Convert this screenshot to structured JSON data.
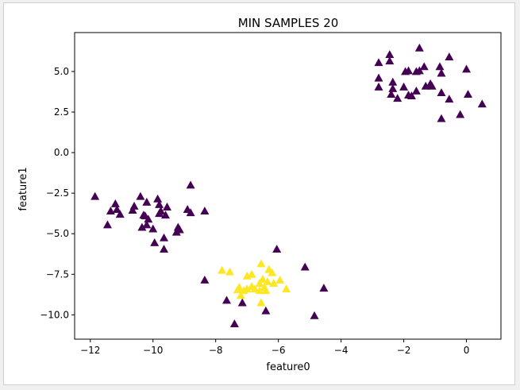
{
  "chart_data": {
    "type": "scatter",
    "title": "MIN SAMPLES 20",
    "xlabel": "feature0",
    "ylabel": "feature1",
    "xlim": [
      -12.5,
      1.1
    ],
    "ylim": [
      -11.5,
      7.4
    ],
    "xticks": [
      -12,
      -10,
      -8,
      -6,
      -4,
      -2,
      0
    ],
    "yticks": [
      -10.0,
      -7.5,
      -5.0,
      -2.5,
      0.0,
      2.5,
      5.0
    ],
    "xtick_labels": [
      "−12",
      "−10",
      "−8",
      "−6",
      "−4",
      "−2",
      "0"
    ],
    "ytick_labels": [
      "−10.0",
      "−7.5",
      "−5.0",
      "−2.5",
      "0.0",
      "2.5",
      "5.0"
    ],
    "grid": false,
    "marker": "triangle",
    "series": [
      {
        "color": "#440154",
        "points": [
          [
            -2.8,
            5.55
          ],
          [
            -2.45,
            6.05
          ],
          [
            -2.45,
            5.65
          ],
          [
            -1.5,
            6.45
          ],
          [
            -0.55,
            5.9
          ],
          [
            -2.8,
            4.6
          ],
          [
            -2.35,
            4.35
          ],
          [
            -1.95,
            5.0
          ],
          [
            -1.85,
            5.05
          ],
          [
            -1.6,
            5.0
          ],
          [
            -1.5,
            5.05
          ],
          [
            -1.35,
            5.3
          ],
          [
            -0.85,
            5.3
          ],
          [
            -0.8,
            4.9
          ],
          [
            0.0,
            5.15
          ],
          [
            -2.8,
            4.05
          ],
          [
            -2.35,
            3.95
          ],
          [
            -2.4,
            3.6
          ],
          [
            -2.2,
            3.35
          ],
          [
            -2.0,
            4.05
          ],
          [
            -1.85,
            3.55
          ],
          [
            -1.75,
            3.5
          ],
          [
            -1.6,
            3.8
          ],
          [
            -1.3,
            4.1
          ],
          [
            -1.15,
            4.25
          ],
          [
            -1.1,
            4.1
          ],
          [
            -0.8,
            3.7
          ],
          [
            -0.55,
            3.3
          ],
          [
            0.05,
            3.6
          ],
          [
            0.5,
            3.0
          ],
          [
            -0.8,
            2.1
          ],
          [
            -0.2,
            2.35
          ],
          [
            -8.8,
            -2.0
          ],
          [
            -11.85,
            -2.7
          ],
          [
            -10.4,
            -2.7
          ],
          [
            -9.85,
            -2.85
          ],
          [
            -10.2,
            -3.05
          ],
          [
            -11.2,
            -3.15
          ],
          [
            -10.6,
            -3.3
          ],
          [
            -9.8,
            -3.2
          ],
          [
            -9.75,
            -3.6
          ],
          [
            -9.55,
            -3.35
          ],
          [
            -11.35,
            -3.6
          ],
          [
            -11.15,
            -3.5
          ],
          [
            -11.05,
            -3.8
          ],
          [
            -10.65,
            -3.55
          ],
          [
            -10.3,
            -3.85
          ],
          [
            -10.25,
            -3.9
          ],
          [
            -10.15,
            -4.1
          ],
          [
            -9.8,
            -3.75
          ],
          [
            -9.6,
            -3.85
          ],
          [
            -8.9,
            -3.5
          ],
          [
            -8.8,
            -3.7
          ],
          [
            -8.35,
            -3.6
          ],
          [
            -11.45,
            -4.45
          ],
          [
            -10.35,
            -4.6
          ],
          [
            -10.2,
            -4.45
          ],
          [
            -10.0,
            -4.7
          ],
          [
            -9.2,
            -4.6
          ],
          [
            -9.15,
            -4.75
          ],
          [
            -9.25,
            -4.9
          ],
          [
            -9.65,
            -5.25
          ],
          [
            -9.95,
            -5.55
          ],
          [
            -9.65,
            -5.95
          ],
          [
            -8.35,
            -7.85
          ],
          [
            -7.65,
            -9.1
          ],
          [
            -7.15,
            -9.25
          ],
          [
            -7.4,
            -10.55
          ],
          [
            -6.4,
            -9.75
          ],
          [
            -6.05,
            -5.95
          ],
          [
            -5.15,
            -7.05
          ],
          [
            -4.55,
            -8.35
          ],
          [
            -4.85,
            -10.05
          ]
        ]
      },
      {
        "color": "#fde725",
        "points": [
          [
            -7.8,
            -7.25
          ],
          [
            -7.55,
            -7.35
          ],
          [
            -6.55,
            -6.85
          ],
          [
            -6.85,
            -7.5
          ],
          [
            -7.0,
            -7.6
          ],
          [
            -6.3,
            -7.2
          ],
          [
            -6.2,
            -7.4
          ],
          [
            -5.95,
            -7.85
          ],
          [
            -6.5,
            -7.8
          ],
          [
            -6.35,
            -7.95
          ],
          [
            -6.6,
            -8.05
          ],
          [
            -6.15,
            -8.05
          ],
          [
            -6.85,
            -8.25
          ],
          [
            -6.45,
            -8.3
          ],
          [
            -6.75,
            -8.4
          ],
          [
            -7.0,
            -8.4
          ],
          [
            -7.25,
            -8.3
          ],
          [
            -7.3,
            -8.45
          ],
          [
            -7.1,
            -8.5
          ],
          [
            -6.6,
            -8.5
          ],
          [
            -6.4,
            -8.5
          ],
          [
            -5.75,
            -8.4
          ],
          [
            -7.2,
            -8.8
          ],
          [
            -6.55,
            -9.25
          ]
        ]
      }
    ]
  }
}
